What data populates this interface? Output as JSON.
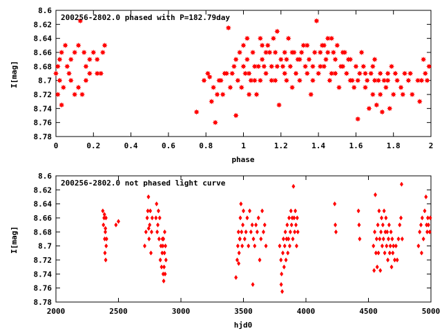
{
  "colors": {
    "points": "#ff0000",
    "axes": "#000000",
    "background": "#ffffff"
  },
  "chart_data": [
    {
      "type": "scatter",
      "title": "200256-2802.0 phased with P=182.79day",
      "xlabel": "phase",
      "ylabel": "I[mag]",
      "xlim": [
        0,
        2
      ],
      "ylim": [
        8.6,
        8.78
      ],
      "y_inverted": true,
      "grid": false,
      "xticks": [
        "0",
        "0.2",
        "0.4",
        "0.6",
        "0.8",
        "1",
        "1.2",
        "1.4",
        "1.6",
        "1.8",
        "2"
      ],
      "yticks": [
        "8.6",
        "8.62",
        "8.64",
        "8.66",
        "8.68",
        "8.7",
        "8.72",
        "8.74",
        "8.76",
        "8.78"
      ],
      "marker": "filled-star",
      "points": [
        [
          0.01,
          8.68
        ],
        [
          0.02,
          8.67
        ],
        [
          0.03,
          8.66
        ],
        [
          0.05,
          8.65
        ],
        [
          0.06,
          8.68
        ],
        [
          0.08,
          8.67
        ],
        [
          0.1,
          8.66
        ],
        [
          0.12,
          8.65
        ],
        [
          0.15,
          8.66
        ],
        [
          0.16,
          8.68
        ],
        [
          0.18,
          8.67
        ],
        [
          0.2,
          8.66
        ],
        [
          0.22,
          8.67
        ],
        [
          0.24,
          8.69
        ],
        [
          0.25,
          8.66
        ],
        [
          0.26,
          8.65
        ],
        [
          0.02,
          8.7
        ],
        [
          0.04,
          8.71
        ],
        [
          0.08,
          8.7
        ],
        [
          0.1,
          8.72
        ],
        [
          0.12,
          8.71
        ],
        [
          0.14,
          8.72
        ],
        [
          0.16,
          8.7
        ],
        [
          0.03,
          8.735
        ],
        [
          0.07,
          8.69
        ],
        [
          0.18,
          8.69
        ],
        [
          0.22,
          8.69
        ],
        [
          0.0,
          8.69
        ],
        [
          0.01,
          8.72
        ],
        [
          0.13,
          8.615
        ],
        [
          0.75,
          8.745
        ],
        [
          0.79,
          8.7
        ],
        [
          0.82,
          8.695
        ],
        [
          0.84,
          8.71
        ],
        [
          0.85,
          8.76
        ],
        [
          0.86,
          8.72
        ],
        [
          0.88,
          8.7
        ],
        [
          0.9,
          8.69
        ],
        [
          0.92,
          8.625
        ],
        [
          0.93,
          8.71
        ],
        [
          0.95,
          8.68
        ],
        [
          0.96,
          8.75
        ],
        [
          0.97,
          8.7
        ],
        [
          0.98,
          8.66
        ],
        [
          1.0,
          8.65
        ],
        [
          1.01,
          8.69
        ],
        [
          1.02,
          8.67
        ],
        [
          1.03,
          8.72
        ],
        [
          1.05,
          8.66
        ],
        [
          1.06,
          8.7
        ],
        [
          1.08,
          8.68
        ],
        [
          1.09,
          8.64
        ],
        [
          1.1,
          8.67
        ],
        [
          1.12,
          8.69
        ],
        [
          1.13,
          8.65
        ],
        [
          1.15,
          8.68
        ],
        [
          1.16,
          8.64
        ],
        [
          1.17,
          8.7
        ],
        [
          1.18,
          8.63
        ],
        [
          1.19,
          8.735
        ],
        [
          1.2,
          8.67
        ],
        [
          1.22,
          8.66
        ],
        [
          1.23,
          8.7
        ],
        [
          1.25,
          8.68
        ],
        [
          1.27,
          8.66
        ],
        [
          1.29,
          8.67
        ],
        [
          1.3,
          8.7
        ],
        [
          1.32,
          8.65
        ],
        [
          1.33,
          8.68
        ],
        [
          1.35,
          8.67
        ],
        [
          1.36,
          8.72
        ],
        [
          1.38,
          8.66
        ],
        [
          1.39,
          8.615
        ],
        [
          1.4,
          8.69
        ],
        [
          1.42,
          8.65
        ],
        [
          1.43,
          8.68
        ],
        [
          1.45,
          8.64
        ],
        [
          1.46,
          8.7
        ],
        [
          1.48,
          8.66
        ],
        [
          1.49,
          8.67
        ],
        [
          1.5,
          8.65
        ],
        [
          1.52,
          8.68
        ],
        [
          1.53,
          8.66
        ],
        [
          1.55,
          8.69
        ],
        [
          1.56,
          8.67
        ],
        [
          1.58,
          8.7
        ],
        [
          1.59,
          8.71
        ],
        [
          1.6,
          8.68
        ],
        [
          1.61,
          8.755
        ],
        [
          1.62,
          8.69
        ],
        [
          1.64,
          8.68
        ],
        [
          1.65,
          8.71
        ],
        [
          1.66,
          8.7
        ],
        [
          1.68,
          8.69
        ],
        [
          1.69,
          8.72
        ],
        [
          1.7,
          8.67
        ],
        [
          1.71,
          8.735
        ],
        [
          1.72,
          8.7
        ],
        [
          1.73,
          8.72
        ],
        [
          1.74,
          8.745
        ],
        [
          1.75,
          8.7
        ],
        [
          1.76,
          8.71
        ],
        [
          1.77,
          8.69
        ],
        [
          1.78,
          8.74
        ],
        [
          1.79,
          8.68
        ],
        [
          1.8,
          8.72
        ],
        [
          1.82,
          8.7
        ],
        [
          1.84,
          8.71
        ],
        [
          1.86,
          8.69
        ],
        [
          1.88,
          8.7
        ],
        [
          1.9,
          8.72
        ],
        [
          1.93,
          8.7
        ],
        [
          1.95,
          8.7
        ],
        [
          1.96,
          8.67
        ],
        [
          1.98,
          8.7
        ],
        [
          1.99,
          8.68
        ],
        [
          0.96,
          8.67
        ],
        [
          1.04,
          8.7
        ],
        [
          1.07,
          8.72
        ],
        [
          1.11,
          8.68
        ],
        [
          1.14,
          8.66
        ],
        [
          1.21,
          8.68
        ],
        [
          1.24,
          8.64
        ],
        [
          1.26,
          8.71
        ],
        [
          1.28,
          8.69
        ],
        [
          1.31,
          8.66
        ],
        [
          1.34,
          8.69
        ],
        [
          1.37,
          8.68
        ],
        [
          1.41,
          8.66
        ],
        [
          1.44,
          8.67
        ],
        [
          1.47,
          8.69
        ],
        [
          1.51,
          8.71
        ],
        [
          1.54,
          8.66
        ],
        [
          1.57,
          8.7
        ],
        [
          1.63,
          8.66
        ],
        [
          1.67,
          8.74
        ],
        [
          1.7,
          8.7
        ],
        [
          0.81,
          8.69
        ],
        [
          0.83,
          8.73
        ],
        [
          0.87,
          8.7
        ],
        [
          0.89,
          8.72
        ],
        [
          0.91,
          8.69
        ],
        [
          0.94,
          8.69
        ],
        [
          0.99,
          8.71
        ],
        [
          1.0,
          8.68
        ],
        [
          1.03,
          8.69
        ],
        [
          1.06,
          8.68
        ],
        [
          1.09,
          8.7
        ],
        [
          1.12,
          8.66
        ],
        [
          1.15,
          8.7
        ],
        [
          1.18,
          8.68
        ],
        [
          1.22,
          8.69
        ],
        [
          1.26,
          8.66
        ],
        [
          1.3,
          8.67
        ],
        [
          1.34,
          8.65
        ],
        [
          1.37,
          8.7
        ],
        [
          1.41,
          8.68
        ],
        [
          1.45,
          8.66
        ],
        [
          1.49,
          8.69
        ],
        [
          1.53,
          8.68
        ],
        [
          1.57,
          8.67
        ],
        [
          1.61,
          8.7
        ],
        [
          1.65,
          8.69
        ],
        [
          1.69,
          8.68
        ],
        [
          1.73,
          8.69
        ],
        [
          1.77,
          8.7
        ],
        [
          1.81,
          8.69
        ],
        [
          1.85,
          8.72
        ],
        [
          1.89,
          8.69
        ],
        [
          1.94,
          8.73
        ],
        [
          1.97,
          8.69
        ],
        [
          1.02,
          8.64
        ],
        [
          1.1,
          8.65
        ],
        [
          1.17,
          8.66
        ],
        [
          1.23,
          8.67
        ],
        [
          1.43,
          8.65
        ],
        [
          1.47,
          8.64
        ]
      ]
    },
    {
      "type": "scatter",
      "title": "200256-2802.0 not phased light curve",
      "xlabel": "hjd0",
      "ylabel": "I[mag]",
      "xlim": [
        2000,
        5000
      ],
      "ylim": [
        8.6,
        8.78
      ],
      "y_inverted": true,
      "grid": false,
      "xticks": [
        "2000",
        "2500",
        "3000",
        "3500",
        "4000",
        "4500",
        "5000"
      ],
      "yticks": [
        "8.6",
        "8.62",
        "8.64",
        "8.66",
        "8.68",
        "8.7",
        "8.72",
        "8.74",
        "8.76",
        "8.78"
      ],
      "marker": "filled-diamond",
      "points": [
        [
          2375,
          8.65
        ],
        [
          2380,
          8.67
        ],
        [
          2385,
          8.66
        ],
        [
          2390,
          8.69
        ],
        [
          2392,
          8.71
        ],
        [
          2395,
          8.68
        ],
        [
          2398,
          8.72
        ],
        [
          2400,
          8.66
        ],
        [
          2402,
          8.7
        ],
        [
          2405,
          8.69
        ],
        [
          2388,
          8.655
        ],
        [
          2396,
          8.675
        ],
        [
          2480,
          8.67
        ],
        [
          2500,
          8.665
        ],
        [
          2710,
          8.7
        ],
        [
          2720,
          8.68
        ],
        [
          2730,
          8.66
        ],
        [
          2740,
          8.63
        ],
        [
          2745,
          8.69
        ],
        [
          2750,
          8.67
        ],
        [
          2755,
          8.65
        ],
        [
          2760,
          8.71
        ],
        [
          2765,
          8.68
        ],
        [
          2770,
          8.66
        ],
        [
          2735,
          8.65
        ],
        [
          2742,
          8.675
        ],
        [
          2800,
          8.66
        ],
        [
          2805,
          8.64
        ],
        [
          2810,
          8.68
        ],
        [
          2815,
          8.67
        ],
        [
          2820,
          8.65
        ],
        [
          2825,
          8.69
        ],
        [
          2830,
          8.66
        ],
        [
          2835,
          8.72
        ],
        [
          2840,
          8.7
        ],
        [
          2845,
          8.73
        ],
        [
          2850,
          8.71
        ],
        [
          2855,
          8.7
        ],
        [
          2860,
          8.69
        ],
        [
          2862,
          8.75
        ],
        [
          2865,
          8.73
        ],
        [
          2868,
          8.71
        ],
        [
          2870,
          8.68
        ],
        [
          2873,
          8.74
        ],
        [
          2876,
          8.7
        ],
        [
          2880,
          8.72
        ],
        [
          2858,
          8.74
        ],
        [
          2852,
          8.69
        ],
        [
          3440,
          8.745
        ],
        [
          3450,
          8.72
        ],
        [
          3455,
          8.7
        ],
        [
          3460,
          8.68
        ],
        [
          3465,
          8.71
        ],
        [
          3470,
          8.69
        ],
        [
          3475,
          8.66
        ],
        [
          3480,
          8.64
        ],
        [
          3485,
          8.68
        ],
        [
          3490,
          8.7
        ],
        [
          3495,
          8.67
        ],
        [
          3500,
          8.65
        ],
        [
          3510,
          8.69
        ],
        [
          3520,
          8.68
        ],
        [
          3530,
          8.66
        ],
        [
          3540,
          8.7
        ],
        [
          3550,
          8.65
        ],
        [
          3560,
          8.68
        ],
        [
          3570,
          8.67
        ],
        [
          3575,
          8.755
        ],
        [
          3580,
          8.69
        ],
        [
          3590,
          8.7
        ],
        [
          3600,
          8.67
        ],
        [
          3610,
          8.68
        ],
        [
          3620,
          8.66
        ],
        [
          3630,
          8.72
        ],
        [
          3640,
          8.69
        ],
        [
          3650,
          8.65
        ],
        [
          3660,
          8.68
        ],
        [
          3670,
          8.67
        ],
        [
          3680,
          8.7
        ],
        [
          3462,
          8.725
        ],
        [
          3472,
          8.69
        ],
        [
          3790,
          8.7
        ],
        [
          3800,
          8.72
        ],
        [
          3805,
          8.74
        ],
        [
          3810,
          8.765
        ],
        [
          3815,
          8.71
        ],
        [
          3820,
          8.69
        ],
        [
          3825,
          8.73
        ],
        [
          3830,
          8.7
        ],
        [
          3835,
          8.68
        ],
        [
          3840,
          8.72
        ],
        [
          3845,
          8.69
        ],
        [
          3850,
          8.67
        ],
        [
          3855,
          8.71
        ],
        [
          3860,
          8.69
        ],
        [
          3865,
          8.66
        ],
        [
          3870,
          8.7
        ],
        [
          3875,
          8.68
        ],
        [
          3880,
          8.65
        ],
        [
          3885,
          8.67
        ],
        [
          3890,
          8.66
        ],
        [
          3895,
          8.69
        ],
        [
          3900,
          8.615
        ],
        [
          3905,
          8.66
        ],
        [
          3910,
          8.68
        ],
        [
          3915,
          8.65
        ],
        [
          3920,
          8.67
        ],
        [
          3925,
          8.7
        ],
        [
          3930,
          8.66
        ],
        [
          3935,
          8.68
        ],
        [
          3802,
          8.755
        ],
        [
          4230,
          8.64
        ],
        [
          4235,
          8.67
        ],
        [
          4240,
          8.68
        ],
        [
          4420,
          8.65
        ],
        [
          4425,
          8.67
        ],
        [
          4430,
          8.69
        ],
        [
          4540,
          8.7
        ],
        [
          4550,
          8.68
        ],
        [
          4560,
          8.71
        ],
        [
          4565,
          8.69
        ],
        [
          4570,
          8.73
        ],
        [
          4575,
          8.67
        ],
        [
          4580,
          8.71
        ],
        [
          4585,
          8.65
        ],
        [
          4590,
          8.69
        ],
        [
          4595,
          8.735
        ],
        [
          4600,
          8.68
        ],
        [
          4605,
          8.66
        ],
        [
          4610,
          8.7
        ],
        [
          4615,
          8.67
        ],
        [
          4620,
          8.69
        ],
        [
          4625,
          8.65
        ],
        [
          4630,
          8.71
        ],
        [
          4635,
          8.68
        ],
        [
          4640,
          8.66
        ],
        [
          4645,
          8.7
        ],
        [
          4650,
          8.68
        ],
        [
          4655,
          8.72
        ],
        [
          4660,
          8.69
        ],
        [
          4665,
          8.67
        ],
        [
          4670,
          8.71
        ],
        [
          4675,
          8.7
        ],
        [
          4680,
          8.68
        ],
        [
          4685,
          8.73
        ],
        [
          4690,
          8.69
        ],
        [
          4695,
          8.71
        ],
        [
          4700,
          8.7
        ],
        [
          4710,
          8.72
        ],
        [
          4720,
          8.7
        ],
        [
          4730,
          8.72
        ],
        [
          4740,
          8.69
        ],
        [
          4750,
          8.67
        ],
        [
          4760,
          8.66
        ],
        [
          4765,
          8.612
        ],
        [
          4770,
          8.69
        ],
        [
          4555,
          8.627
        ],
        [
          4545,
          8.735
        ],
        [
          4900,
          8.7
        ],
        [
          4910,
          8.68
        ],
        [
          4920,
          8.67
        ],
        [
          4930,
          8.66
        ],
        [
          4940,
          8.69
        ],
        [
          4950,
          8.65
        ],
        [
          4960,
          8.63
        ],
        [
          4965,
          8.67
        ],
        [
          4970,
          8.68
        ],
        [
          4975,
          8.66
        ],
        [
          4980,
          8.67
        ],
        [
          4990,
          8.68
        ],
        [
          4995,
          8.66
        ],
        [
          4925,
          8.71
        ]
      ]
    }
  ]
}
